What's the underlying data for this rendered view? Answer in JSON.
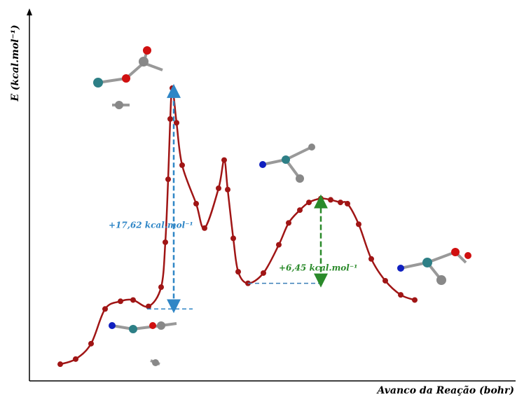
{
  "chart_data": {
    "type": "line",
    "y_label": "E (kcal.mol⁻¹)",
    "x_label": "Avanco da Reação (bohr)",
    "annotations": [
      "+17,62 kcal.mol⁻¹",
      "+6,45 kcal.mol⁻¹"
    ],
    "xlim": [
      0,
      69
    ],
    "ylim": [
      -1.3,
      27.6
    ],
    "series": [
      {
        "color": "#a01515",
        "x": [
          4.4,
          6.6,
          8.8,
          10.8,
          13.0,
          14.8,
          17.0,
          18.8,
          19.4,
          19.8,
          20.1,
          20.4,
          21.0,
          21.8,
          23.8,
          25.0,
          27.0,
          27.8,
          28.3,
          29.1,
          29.8,
          31.2,
          33.4,
          35.6,
          37.0,
          38.6,
          39.9,
          41.6,
          43.0,
          44.4,
          45.4,
          47.0,
          48.8,
          50.8,
          53.0,
          55.0
        ],
        "values": [
          0,
          0.4,
          1.6,
          4.3,
          4.9,
          5.0,
          4.5,
          6.0,
          9.5,
          14.4,
          19.1,
          21.5,
          18.8,
          15.5,
          12.5,
          10.6,
          13.7,
          15.9,
          13.6,
          9.8,
          7.2,
          6.3,
          7.1,
          9.3,
          11.0,
          12.0,
          12.6,
          12.9,
          12.8,
          12.6,
          12.5,
          10.9,
          8.2,
          6.5,
          5.4,
          5.0
        ]
      }
    ]
  }
}
